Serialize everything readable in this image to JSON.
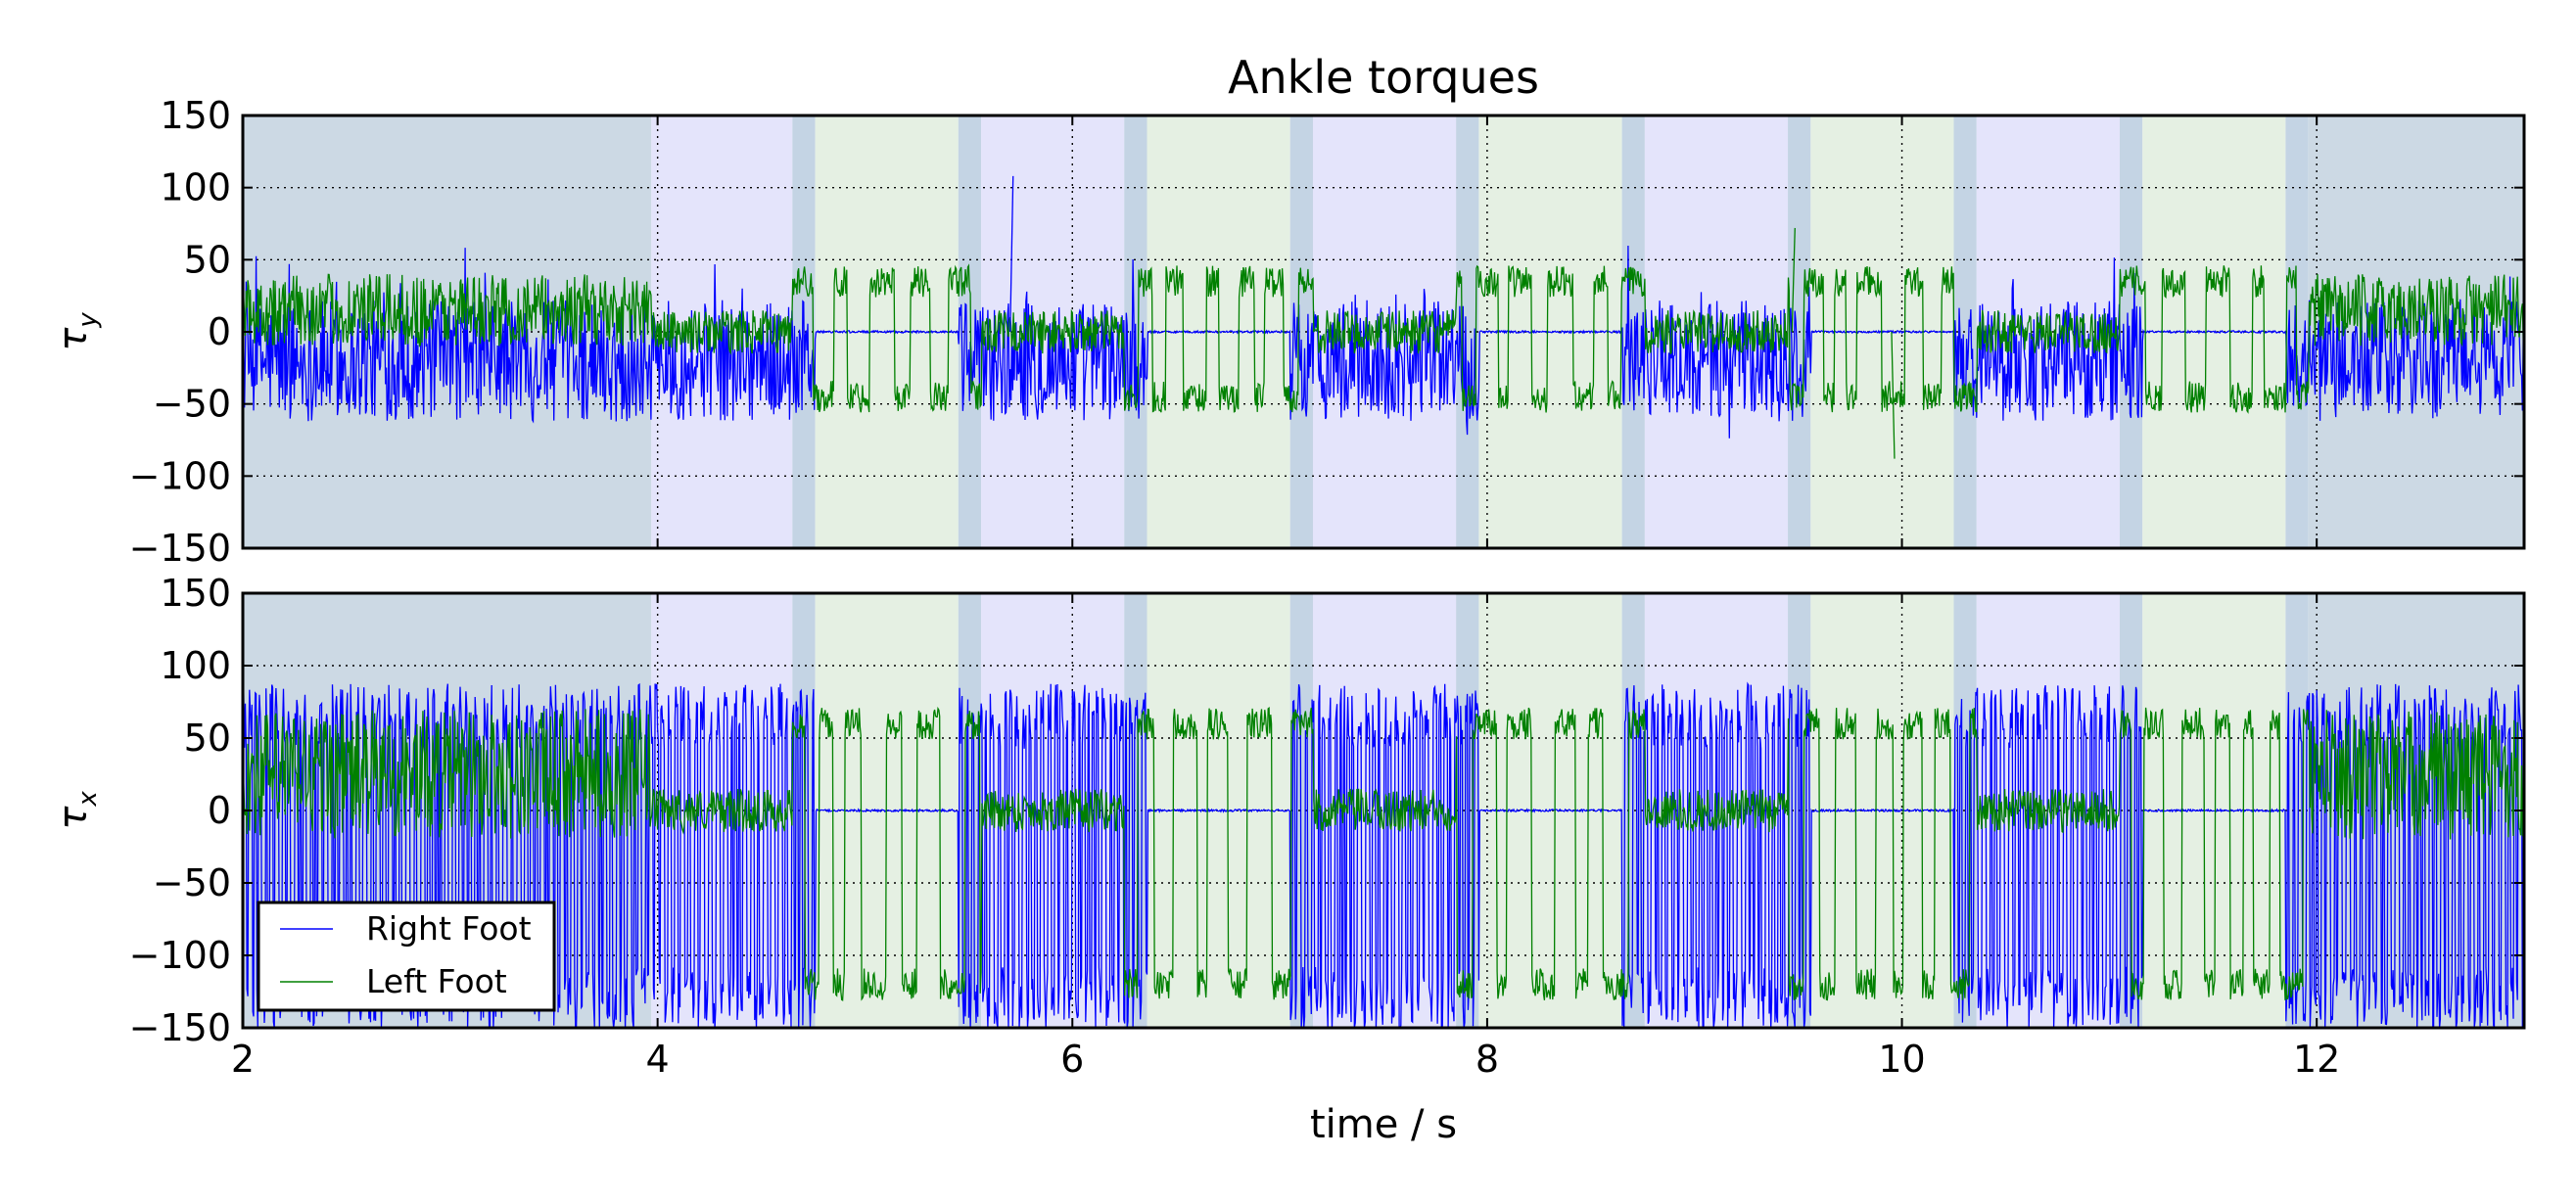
{
  "chart_data": {
    "type": "line",
    "title": "Ankle torques",
    "xlabel": "time / s",
    "xlim": [
      2,
      13
    ],
    "x_ticks": [
      2,
      4,
      6,
      8,
      10,
      12
    ],
    "x_tick_labels": [
      "2",
      "4",
      "6",
      "8",
      "10",
      "12"
    ],
    "grid": true,
    "grid_style": "dotted",
    "legend_position": "lower-left",
    "legend_panel": "tau_x",
    "colors": {
      "right_foot": "#0000ff",
      "left_foot": "#008000",
      "double_support_band": "#ccd9e4",
      "right_stance_band": "#e4e4fb",
      "left_stance_band": "#e5f0e3",
      "transition_band": "#c4d4e4"
    },
    "series": [
      {
        "name": "Right Foot",
        "color": "#0000ff"
      },
      {
        "name": "Left Foot",
        "color": "#008000"
      }
    ],
    "phases": [
      {
        "start": 2.0,
        "end": 3.97,
        "type": "double_support"
      },
      {
        "start": 3.97,
        "end": 4.65,
        "type": "right_stance"
      },
      {
        "start": 4.65,
        "end": 4.76,
        "type": "transition"
      },
      {
        "start": 4.76,
        "end": 5.45,
        "type": "left_stance"
      },
      {
        "start": 5.45,
        "end": 5.56,
        "type": "transition"
      },
      {
        "start": 5.56,
        "end": 6.25,
        "type": "right_stance"
      },
      {
        "start": 6.25,
        "end": 6.36,
        "type": "transition"
      },
      {
        "start": 6.36,
        "end": 7.05,
        "type": "left_stance"
      },
      {
        "start": 7.05,
        "end": 7.16,
        "type": "transition"
      },
      {
        "start": 7.16,
        "end": 7.85,
        "type": "right_stance"
      },
      {
        "start": 7.85,
        "end": 7.96,
        "type": "transition"
      },
      {
        "start": 7.96,
        "end": 8.65,
        "type": "left_stance"
      },
      {
        "start": 8.65,
        "end": 8.76,
        "type": "transition"
      },
      {
        "start": 8.76,
        "end": 9.45,
        "type": "right_stance"
      },
      {
        "start": 9.45,
        "end": 9.56,
        "type": "transition"
      },
      {
        "start": 9.56,
        "end": 10.25,
        "type": "left_stance"
      },
      {
        "start": 10.25,
        "end": 10.36,
        "type": "transition"
      },
      {
        "start": 10.36,
        "end": 11.05,
        "type": "right_stance"
      },
      {
        "start": 11.05,
        "end": 11.16,
        "type": "transition"
      },
      {
        "start": 11.16,
        "end": 11.85,
        "type": "left_stance"
      },
      {
        "start": 11.85,
        "end": 11.96,
        "type": "transition"
      },
      {
        "start": 11.96,
        "end": 13.0,
        "type": "double_support"
      }
    ],
    "panels": [
      {
        "id": "tau_y",
        "ylabel": "τ",
        "ylabel_sub": "y",
        "ylim": [
          -150,
          150
        ],
        "y_ticks": [
          -150,
          -100,
          -50,
          0,
          50,
          100,
          150
        ],
        "y_tick_labels": [
          "−150",
          "−100",
          "−50",
          "0",
          "50",
          "100",
          "150"
        ],
        "right_foot": {
          "stance_center": -20,
          "stance_spread": 42,
          "swing_value": 0
        },
        "left_foot": {
          "double_support_center": 15,
          "double_support_spread": 25,
          "stance_high": 35,
          "stance_low": -45,
          "swing_value": 0
        },
        "spikes": [
          {
            "x": 5.7,
            "y": 108,
            "series": "Right Foot"
          },
          {
            "x": 9.47,
            "y": 72,
            "series": "Left Foot"
          },
          {
            "x": 9.95,
            "y": -88,
            "series": "Left Foot"
          }
        ]
      },
      {
        "id": "tau_x",
        "ylabel": "τ",
        "ylabel_sub": "x",
        "ylim": [
          -150,
          150
        ],
        "y_ticks": [
          -150,
          -100,
          -50,
          0,
          50,
          100,
          150
        ],
        "y_tick_labels": [
          "−150",
          "−100",
          "−50",
          "0",
          "50",
          "100",
          "150"
        ],
        "right_foot": {
          "stance_high": 65,
          "stance_low": -130,
          "swing_value": 0
        },
        "left_foot": {
          "double_support_center": 25,
          "double_support_spread": 45,
          "stance_high": 60,
          "stance_low": -120,
          "swing_value": 0
        },
        "spikes": []
      }
    ]
  },
  "legend": {
    "right_label": "Right Foot",
    "left_label": "Left Foot"
  }
}
